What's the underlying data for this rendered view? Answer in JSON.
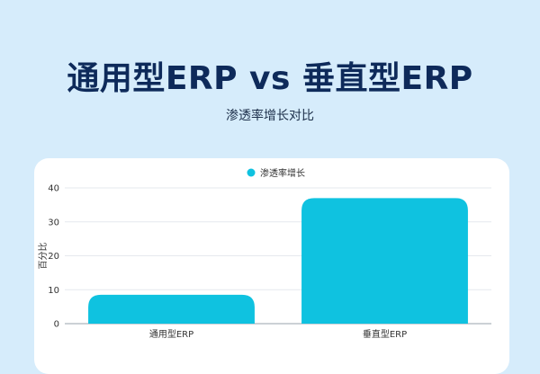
{
  "header": {
    "title": "通用型ERP vs 垂直型ERP",
    "subtitle": "渗透率增长对比"
  },
  "colors": {
    "background": "#d6ecfb",
    "bar": "#0fc2e0",
    "title": "#0e2a5a",
    "grid": "#e6e9ee"
  },
  "chart_data": {
    "type": "bar",
    "categories": [
      "通用型ERP",
      "垂直型ERP"
    ],
    "series": [
      {
        "name": "渗透率增长",
        "values": [
          8.5,
          37
        ]
      }
    ],
    "ylabel": "百分比",
    "xlabel": "",
    "ylim": [
      0,
      40
    ],
    "yticks": [
      0,
      10,
      20,
      30,
      40
    ],
    "legend": "top",
    "grid": true
  }
}
